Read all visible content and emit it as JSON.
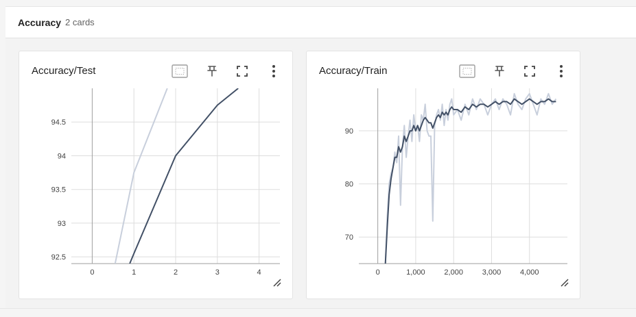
{
  "group": {
    "title": "Accuracy",
    "count_label": "2 cards"
  },
  "icons": [
    "fit-domain-icon",
    "pin-icon",
    "fullscreen-icon",
    "more-vert-icon",
    "resize-handle-icon"
  ],
  "colors": {
    "smoothed_line": "#425066",
    "raw_line": "#c8cfdc",
    "grid": "#dddddd",
    "zero_axis": "#9e9e9e"
  },
  "cards": [
    {
      "title": "Accuracy/Test",
      "chart_data": {
        "type": "line",
        "title": "Accuracy/Test",
        "xlabel": "",
        "ylabel": "",
        "xlim": [
          -0.5,
          4.5
        ],
        "ylim": [
          92.4,
          95.0
        ],
        "x_ticks": [
          0,
          1,
          2,
          3,
          4
        ],
        "y_ticks": [
          92.5,
          93,
          93.5,
          94,
          94.5
        ],
        "x_tick_labels": [
          "0",
          "1",
          "2",
          "3",
          "4"
        ],
        "y_tick_labels": [
          "92.5",
          "93",
          "93.5",
          "94",
          "94.5"
        ],
        "grid": true,
        "series": [
          {
            "role": "raw",
            "x": [
              0.55,
              1.0,
              1.8
            ],
            "y": [
              92.4,
              93.75,
              95.0
            ]
          },
          {
            "role": "smoothed",
            "x": [
              0.9,
              1.0,
              2.0,
              3.0,
              3.5
            ],
            "y": [
              92.4,
              92.55,
              94.0,
              94.75,
              95.0
            ]
          }
        ]
      }
    },
    {
      "title": "Accuracy/Train",
      "chart_data": {
        "type": "line",
        "title": "Accuracy/Train",
        "xlabel": "",
        "ylabel": "",
        "xlim": [
          -500,
          5000
        ],
        "ylim": [
          65,
          98
        ],
        "x_ticks": [
          0,
          1000,
          2000,
          3000,
          4000
        ],
        "y_ticks": [
          70,
          80,
          90
        ],
        "x_tick_labels": [
          "0",
          "1,000",
          "2,000",
          "3,000",
          "4,000"
        ],
        "y_tick_labels": [
          "70",
          "80",
          "90"
        ],
        "grid": true,
        "series": [
          {
            "role": "raw",
            "x": [
              200,
              250,
              300,
              350,
              400,
              450,
              500,
              550,
              600,
              650,
              700,
              750,
              800,
              850,
              900,
              950,
              1000,
              1050,
              1100,
              1150,
              1200,
              1250,
              1300,
              1350,
              1400,
              1450,
              1500,
              1550,
              1600,
              1650,
              1700,
              1750,
              1800,
              1850,
              1900,
              1950,
              2000,
              2100,
              2200,
              2300,
              2400,
              2500,
              2600,
              2700,
              2800,
              2900,
              3000,
              3100,
              3200,
              3300,
              3400,
              3500,
              3600,
              3700,
              3800,
              3900,
              4000,
              4100,
              4200,
              4300,
              4400,
              4500,
              4600,
              4700
            ],
            "y": [
              65,
              74,
              80,
              82,
              83,
              86,
              84,
              89,
              76,
              87,
              91,
              85,
              89,
              92,
              88,
              93,
              90,
              91,
              88,
              93,
              92,
              95,
              90,
              89,
              89,
              73,
              91,
              93,
              94,
              92,
              95,
              91,
              94,
              92,
              95,
              96,
              93,
              94,
              92,
              95,
              93,
              96,
              94,
              96,
              95,
              93,
              95,
              96,
              94,
              96,
              95,
              93,
              97,
              95,
              94,
              96,
              97,
              95,
              93,
              96,
              95,
              97,
              95,
              96
            ]
          },
          {
            "role": "smoothed",
            "x": [
              200,
              250,
              300,
              350,
              400,
              450,
              500,
              550,
              600,
              650,
              700,
              750,
              800,
              850,
              900,
              950,
              1000,
              1050,
              1100,
              1150,
              1200,
              1250,
              1300,
              1350,
              1400,
              1450,
              1500,
              1550,
              1600,
              1650,
              1700,
              1750,
              1800,
              1850,
              1900,
              1950,
              2000,
              2100,
              2200,
              2300,
              2400,
              2500,
              2600,
              2700,
              2800,
              2900,
              3000,
              3100,
              3200,
              3300,
              3400,
              3500,
              3600,
              3700,
              3800,
              3900,
              4000,
              4100,
              4200,
              4300,
              4400,
              4500,
              4600,
              4700
            ],
            "y": [
              65,
              72,
              78,
              81,
              83,
              85,
              85,
              87,
              86,
              87,
              89,
              88,
              89,
              90,
              90,
              91,
              90,
              91,
              90,
              91,
              92,
              92.5,
              92,
              91.5,
              91.5,
              90.5,
              91.5,
              92.5,
              93,
              92.5,
              93.5,
              93,
              93.5,
              93,
              94,
              94.5,
              94,
              94,
              93.5,
              94.5,
              94,
              95,
              94.5,
              95,
              95,
              94.5,
              95,
              95.5,
              95,
              95.5,
              95.5,
              95,
              96,
              95.5,
              95,
              95.5,
              96,
              95.5,
              95,
              95.5,
              95.5,
              96,
              95.5,
              95.5
            ]
          }
        ]
      }
    }
  ]
}
